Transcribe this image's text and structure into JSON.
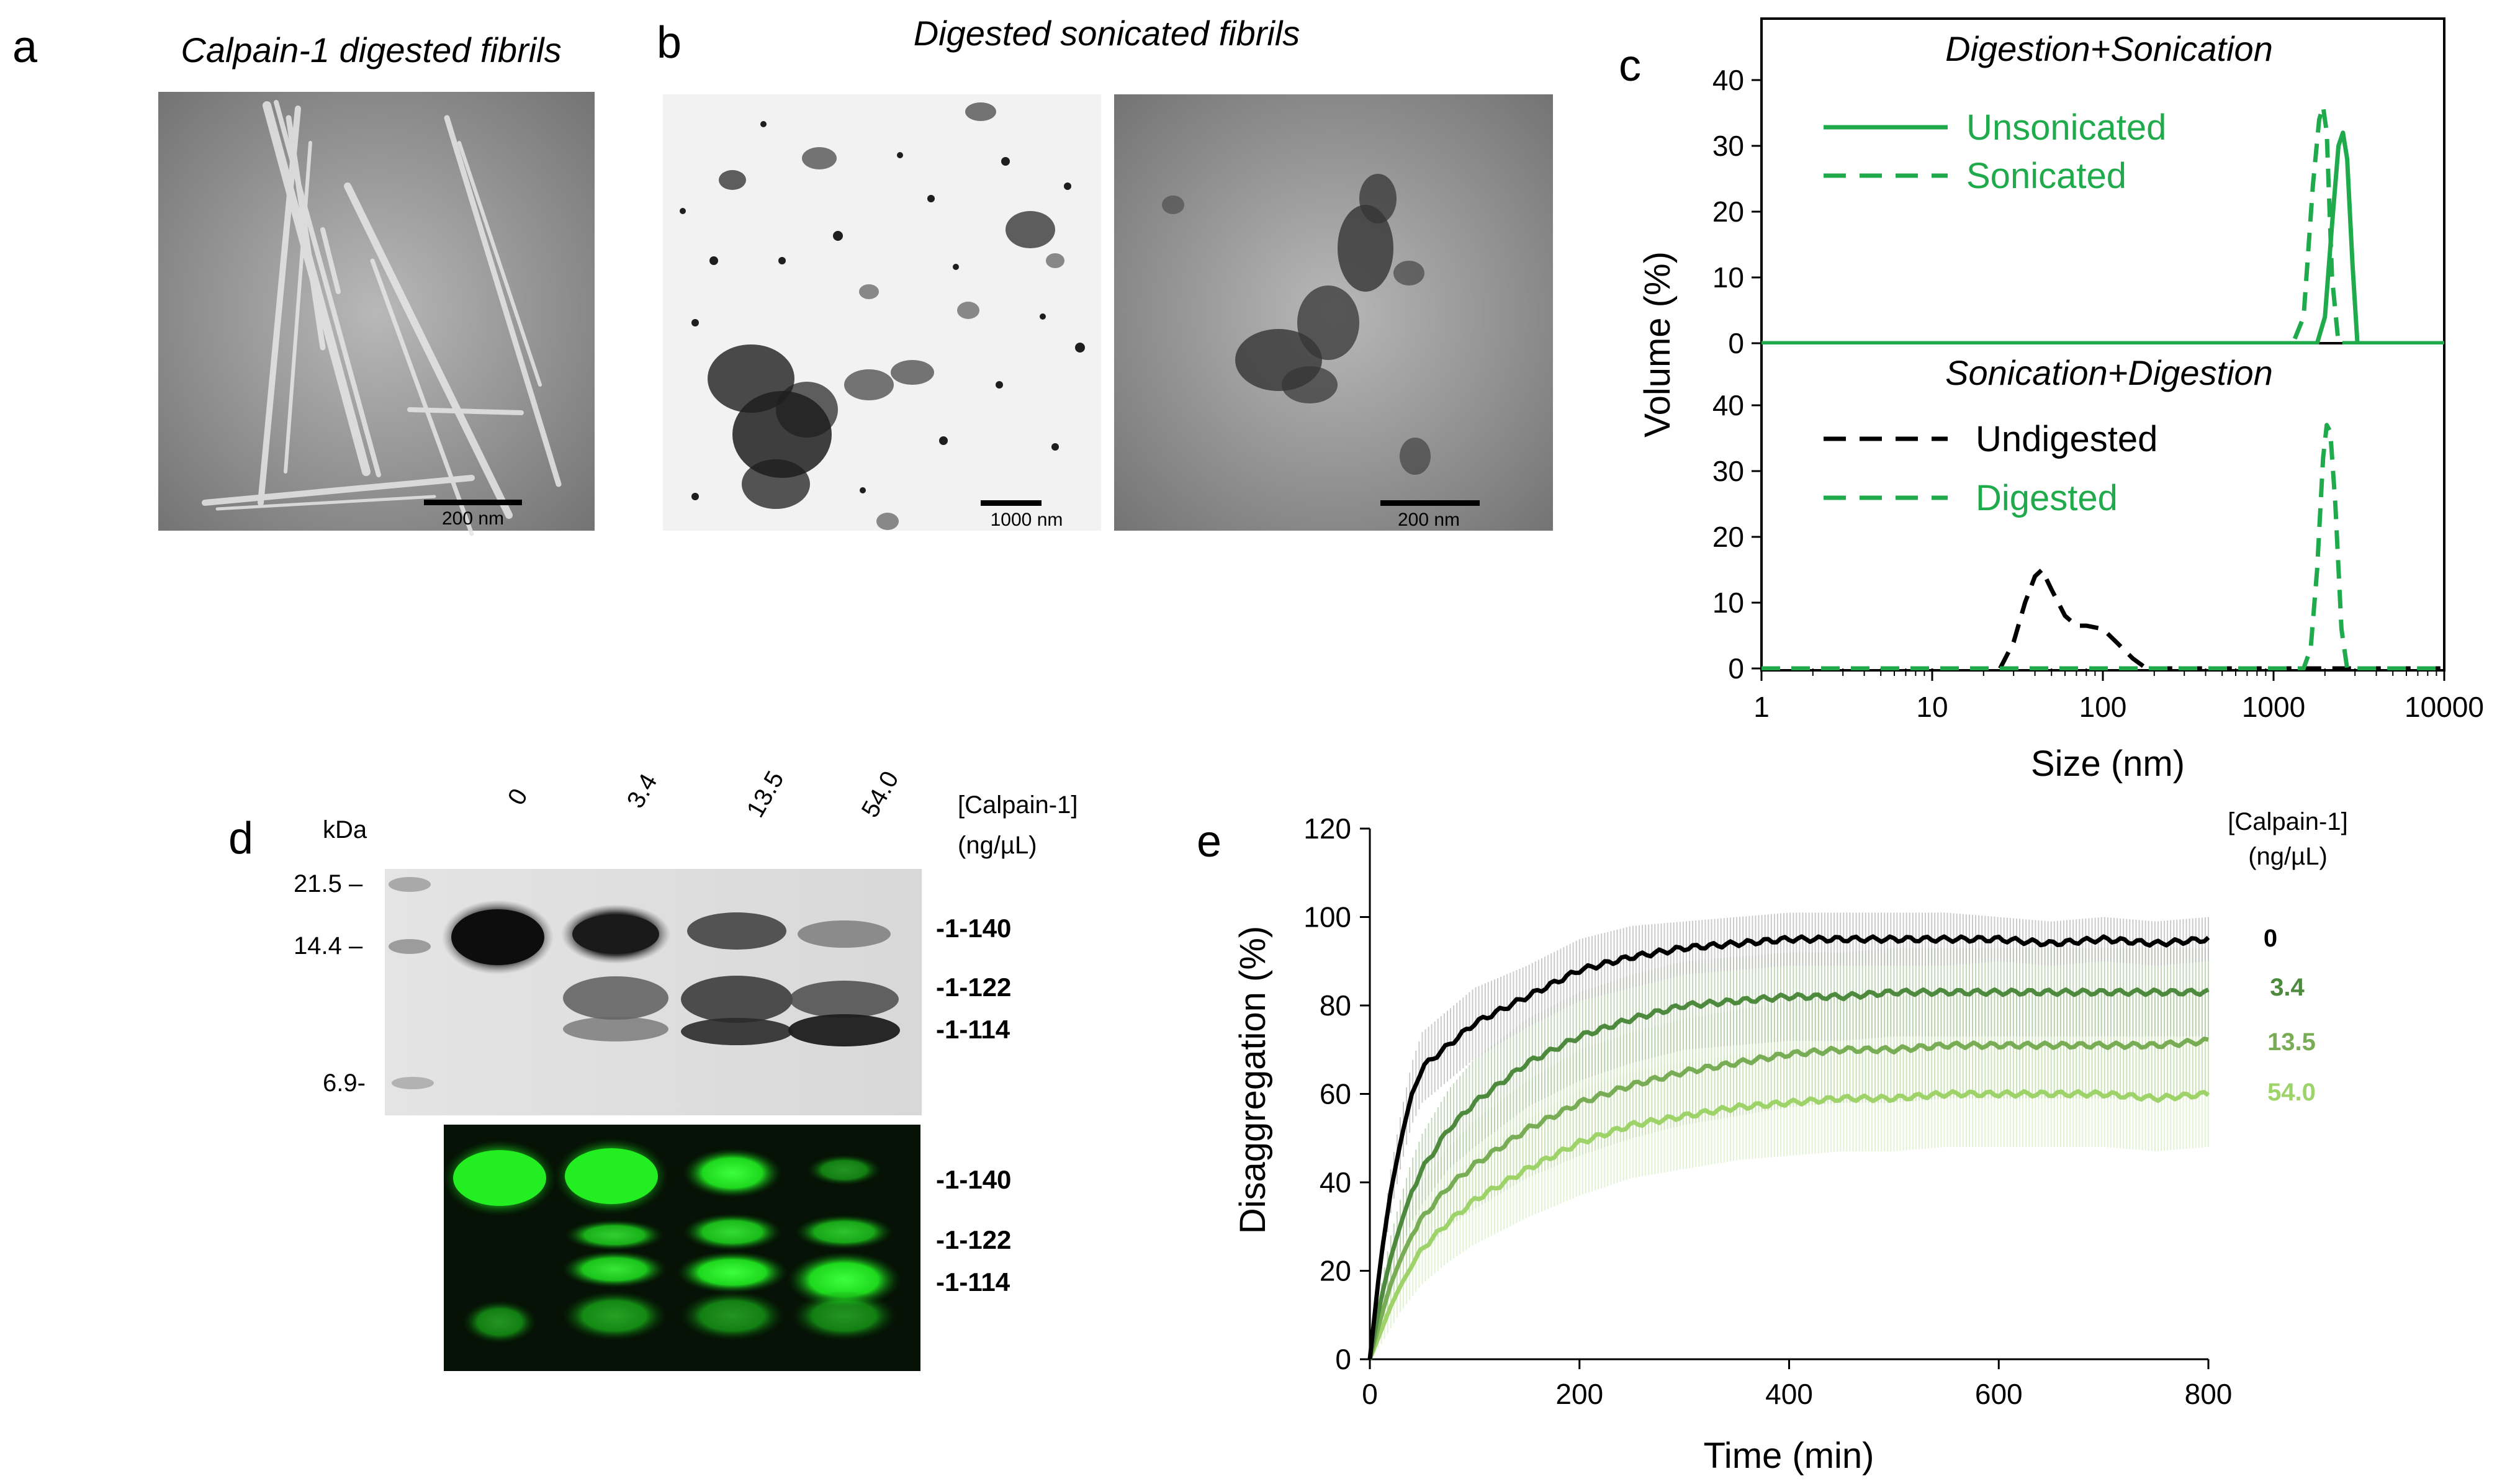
{
  "panels": {
    "a": {
      "label": "a",
      "title": "Calpain-1 digested fibrils",
      "scale_bar": "200 nm"
    },
    "b": {
      "label": "b",
      "title": "Digested sonicated fibrils",
      "scale_bar_left": "1000 nm",
      "scale_bar_right": "200 nm"
    },
    "c": {
      "label": "c"
    },
    "d": {
      "label": "d",
      "kda_label": "kDa",
      "mw_markers": [
        "21.5 –",
        "14.4 –",
        "6.9-"
      ],
      "lanes": [
        "0",
        "3.4",
        "13.5",
        "54.0"
      ],
      "header": [
        "[Calpain-1]",
        "(ng/µL)"
      ],
      "top_bands": [
        "-1-140",
        "-1-122",
        "-1-114"
      ],
      "bottom_bands": [
        "-1-140",
        "-1-122",
        "-1-114"
      ]
    },
    "e": {
      "label": "e",
      "header": [
        "[Calpain-1]",
        "(ng/µL)"
      ]
    }
  },
  "colors": {
    "green": "#1faa4b",
    "black": "#000000",
    "e_series": [
      "#000000",
      "#4e8a3e",
      "#79ad55",
      "#9ed36a"
    ],
    "e_error": [
      "#bdbdbd",
      "#b5cdaa",
      "#c9e0b4",
      "#dcefc9"
    ]
  },
  "chart_data": [
    {
      "type": "line",
      "title": "Digestion+Sonication",
      "xlabel": "Size (nm)",
      "ylabel": "Volume (%)",
      "xscale": "log",
      "xlim": [
        1,
        10000
      ],
      "ylim": [
        0,
        45
      ],
      "xticks": [
        "1",
        "10",
        "100",
        "1000",
        "10000"
      ],
      "yticks": [
        "0",
        "10",
        "20",
        "30",
        "40"
      ],
      "legend_position": "top-left",
      "series": [
        {
          "name": "Unsonicated",
          "style": "solid",
          "color": "#1faa4b",
          "x": [
            1,
            1800,
            2000,
            2200,
            2400,
            2550,
            2700,
            2900,
            3100,
            10000
          ],
          "y": [
            0,
            0,
            4,
            18,
            30,
            32,
            28,
            12,
            0,
            0
          ]
        },
        {
          "name": "Sonicated",
          "style": "dashed",
          "color": "#1faa4b",
          "x": [
            1,
            1300,
            1500,
            1700,
            1850,
            1950,
            2050,
            2200,
            2400,
            10000
          ],
          "y": [
            0,
            0,
            4,
            24,
            34,
            36,
            32,
            10,
            0,
            0
          ]
        }
      ]
    },
    {
      "type": "line",
      "title": "Sonication+Digestion",
      "xlabel": "Size (nm)",
      "ylabel": "Volume (%)",
      "xscale": "log",
      "xlim": [
        1,
        10000
      ],
      "ylim": [
        0,
        45
      ],
      "xticks": [
        "1",
        "10",
        "100",
        "1000",
        "10000"
      ],
      "yticks": [
        "0",
        "10",
        "20",
        "30",
        "40"
      ],
      "legend_position": "top-left",
      "series": [
        {
          "name": "Undigested",
          "style": "dashed",
          "color": "#000000",
          "x": [
            1,
            25,
            30,
            35,
            40,
            44,
            50,
            60,
            70,
            80,
            100,
            120,
            150,
            180,
            200,
            10000
          ],
          "y": [
            0,
            0,
            4,
            10,
            14,
            15,
            12,
            8,
            6.5,
            6.5,
            6,
            4,
            1.5,
            0,
            0,
            0
          ]
        },
        {
          "name": "Digested",
          "style": "dashed",
          "color": "#1faa4b",
          "x": [
            1,
            1500,
            1650,
            1800,
            1950,
            2050,
            2150,
            2300,
            2500,
            2700,
            10000
          ],
          "y": [
            0,
            0,
            3,
            15,
            32,
            37,
            36,
            25,
            6,
            0,
            0
          ]
        }
      ]
    },
    {
      "type": "line",
      "title": "",
      "xlabel": "Time (min)",
      "ylabel": "Disaggregation (%)",
      "xlim": [
        0,
        800
      ],
      "ylim": [
        0,
        120
      ],
      "xticks": [
        "0",
        "200",
        "400",
        "600",
        "800"
      ],
      "yticks": [
        "0",
        "20",
        "40",
        "60",
        "80",
        "100",
        "120"
      ],
      "legend_position": "right",
      "series": [
        {
          "name": "0",
          "color": "#000000",
          "x": [
            0,
            10,
            20,
            30,
            40,
            50,
            75,
            100,
            150,
            200,
            250,
            300,
            350,
            400,
            450,
            500,
            550,
            600,
            650,
            700,
            750,
            800
          ],
          "y": [
            0,
            22,
            38,
            50,
            60,
            66,
            71,
            76,
            82,
            88,
            91,
            93,
            94,
            95,
            95,
            95,
            95,
            95,
            94,
            95,
            94,
            95
          ],
          "error": [
            0,
            3,
            5,
            6,
            7,
            8,
            8,
            8,
            7,
            7,
            7,
            6,
            6,
            6,
            6,
            6,
            6,
            5,
            5,
            5,
            5,
            5
          ]
        },
        {
          "name": "3.4",
          "color": "#4e8a3e",
          "x": [
            0,
            10,
            20,
            30,
            40,
            50,
            75,
            100,
            150,
            200,
            250,
            300,
            350,
            400,
            450,
            500,
            550,
            600,
            650,
            700,
            750,
            800
          ],
          "y": [
            0,
            13,
            23,
            31,
            38,
            43,
            52,
            58,
            67,
            73,
            77,
            80,
            81,
            82,
            82,
            83,
            83,
            83,
            83,
            83,
            83,
            83
          ],
          "error": [
            0,
            3,
            5,
            6,
            7,
            8,
            9,
            10,
            10,
            10,
            10,
            10,
            10,
            10,
            10,
            10,
            10,
            10,
            10,
            10,
            10,
            10
          ]
        },
        {
          "name": "13.5",
          "color": "#79ad55",
          "x": [
            0,
            10,
            20,
            30,
            40,
            50,
            75,
            100,
            150,
            200,
            250,
            300,
            350,
            400,
            450,
            500,
            550,
            600,
            650,
            700,
            750,
            800
          ],
          "y": [
            0,
            9,
            17,
            23,
            28,
            32,
            39,
            44,
            52,
            58,
            62,
            65,
            67,
            69,
            70,
            70,
            71,
            71,
            71,
            71,
            71,
            72
          ],
          "error": [
            0,
            3,
            5,
            6,
            7,
            8,
            9,
            10,
            11,
            12,
            12,
            12,
            12,
            12,
            12,
            12,
            12,
            12,
            12,
            12,
            12,
            12
          ]
        },
        {
          "name": "54.0",
          "color": "#9ed36a",
          "x": [
            0,
            10,
            20,
            30,
            40,
            50,
            75,
            100,
            150,
            200,
            250,
            300,
            350,
            400,
            450,
            500,
            550,
            600,
            650,
            700,
            750,
            800
          ],
          "y": [
            0,
            6,
            12,
            17,
            21,
            25,
            31,
            36,
            43,
            49,
            53,
            55,
            57,
            58,
            59,
            59,
            60,
            60,
            60,
            60,
            59,
            60
          ],
          "error": [
            0,
            3,
            5,
            6,
            7,
            8,
            9,
            10,
            11,
            12,
            12,
            12,
            12,
            12,
            12,
            12,
            12,
            12,
            12,
            12,
            12,
            12
          ]
        }
      ]
    }
  ]
}
